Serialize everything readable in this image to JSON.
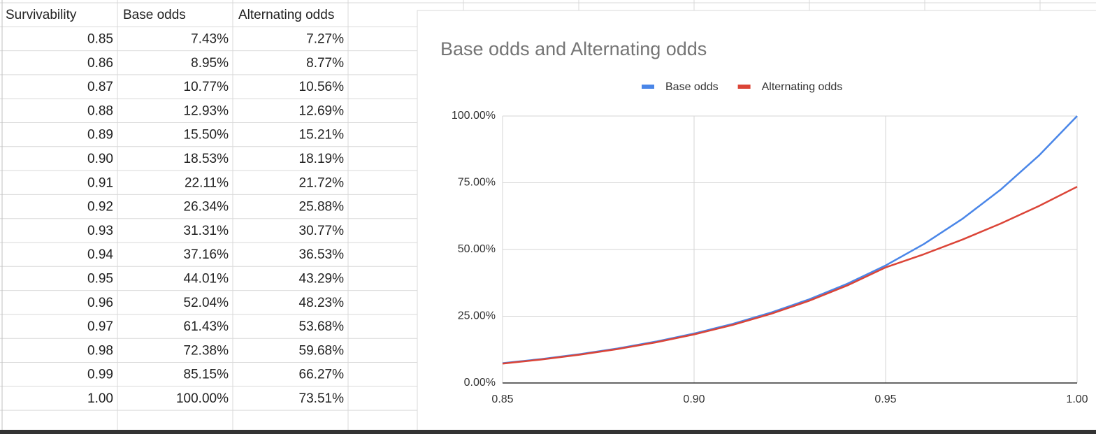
{
  "table": {
    "header": [
      "Survivability",
      "Base odds",
      "Alternating odds"
    ],
    "rows": [
      [
        "0.85",
        "7.43%",
        "7.27%"
      ],
      [
        "0.86",
        "8.95%",
        "8.77%"
      ],
      [
        "0.87",
        "10.77%",
        "10.56%"
      ],
      [
        "0.88",
        "12.93%",
        "12.69%"
      ],
      [
        "0.89",
        "15.50%",
        "15.21%"
      ],
      [
        "0.90",
        "18.53%",
        "18.19%"
      ],
      [
        "0.91",
        "22.11%",
        "21.72%"
      ],
      [
        "0.92",
        "26.34%",
        "25.88%"
      ],
      [
        "0.93",
        "31.31%",
        "30.77%"
      ],
      [
        "0.94",
        "37.16%",
        "36.53%"
      ],
      [
        "0.95",
        "44.01%",
        "43.29%"
      ],
      [
        "0.96",
        "52.04%",
        "48.23%"
      ],
      [
        "0.97",
        "61.43%",
        "53.68%"
      ],
      [
        "0.98",
        "72.38%",
        "59.68%"
      ],
      [
        "0.99",
        "85.15%",
        "66.27%"
      ],
      [
        "1.00",
        "100.00%",
        "73.51%"
      ]
    ]
  },
  "chart_data": {
    "type": "line",
    "title": "Base odds and Alternating odds",
    "x": [
      0.85,
      0.86,
      0.87,
      0.88,
      0.89,
      0.9,
      0.91,
      0.92,
      0.93,
      0.94,
      0.95,
      0.96,
      0.97,
      0.98,
      0.99,
      1
    ],
    "series": [
      {
        "name": "Base odds",
        "color": "#4a86e8",
        "values": [
          7.43,
          8.95,
          10.77,
          12.93,
          15.5,
          18.53,
          22.11,
          26.34,
          31.31,
          37.16,
          44.01,
          52.04,
          61.43,
          72.38,
          85.15,
          100
        ]
      },
      {
        "name": "Alternating odds",
        "color": "#db4437",
        "values": [
          7.27,
          8.77,
          10.56,
          12.69,
          15.21,
          18.19,
          21.72,
          25.88,
          30.77,
          36.53,
          43.29,
          48.23,
          53.68,
          59.68,
          66.27,
          73.51
        ]
      }
    ],
    "xlim": [
      0.85,
      1
    ],
    "xticks": [
      0.85,
      {
        "value": 0.9,
        "label": "0.90"
      },
      0.95,
      {
        "value": 1,
        "label": "1.00"
      }
    ],
    "ylim": [
      0,
      100
    ],
    "yticks": [
      {
        "value": 0,
        "label": "0.00%"
      },
      {
        "value": 25,
        "label": "25.00%"
      },
      {
        "value": 50,
        "label": "50.00%"
      },
      {
        "value": 75,
        "label": "75.00%"
      },
      {
        "value": 100,
        "label": "100.00%"
      }
    ],
    "grid": true,
    "legend": "top"
  }
}
